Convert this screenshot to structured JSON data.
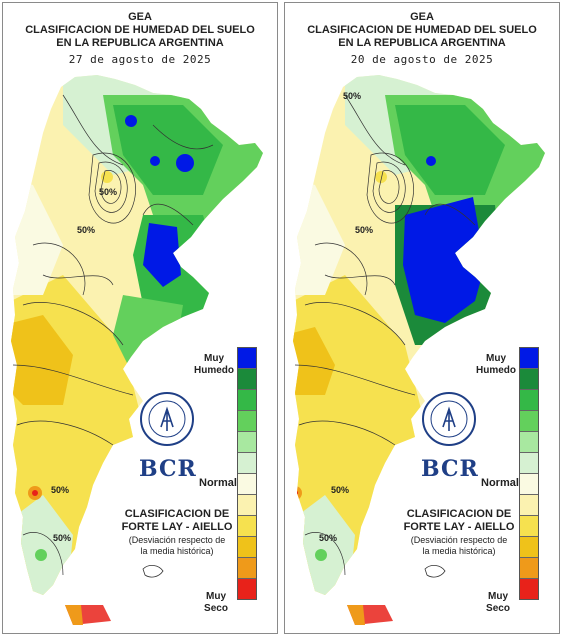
{
  "panels": [
    {
      "gea": "GEA",
      "title_line1": "CLASIFICACION DE HUMEDAD DEL SUELO",
      "title_line2": "EN LA REPUBLICA ARGENTINA",
      "date": "27 de agosto de 2025",
      "contour_labels": [
        "50%",
        "50%",
        "50%",
        "50%"
      ],
      "humid_zone": "large-east"
    },
    {
      "gea": "GEA",
      "title_line1": "CLASIFICACION DE HUMEDAD DEL SUELO",
      "title_line2": "EN LA REPUBLICA ARGENTINA",
      "date": "20 de agosto de 2025",
      "contour_labels": [
        "50%",
        "50%",
        "50%",
        "50%"
      ],
      "humid_zone": "very-large-east"
    }
  ],
  "legend": {
    "top_label": "Muy Humedo",
    "middle_label": "Normal",
    "bottom_label": "Muy Seco",
    "colors": [
      "#0019e6",
      "#1b8a3a",
      "#34b847",
      "#63d05c",
      "#a8e8a0",
      "#d6f1d2",
      "#fafae2",
      "#fbf2b0",
      "#f6e14f",
      "#efc21a",
      "#ef9a1a",
      "#e8221a"
    ]
  },
  "classification": {
    "line1": "CLASIFICACION DE",
    "line2": "FORTE LAY - AIELLO",
    "note_line1": "(Desviación respecto de",
    "note_line2": "la media histórica)"
  },
  "logo": {
    "seal_text": "BOLSA DE COMERCIO DE ROSARIO",
    "brand": "BCR"
  }
}
